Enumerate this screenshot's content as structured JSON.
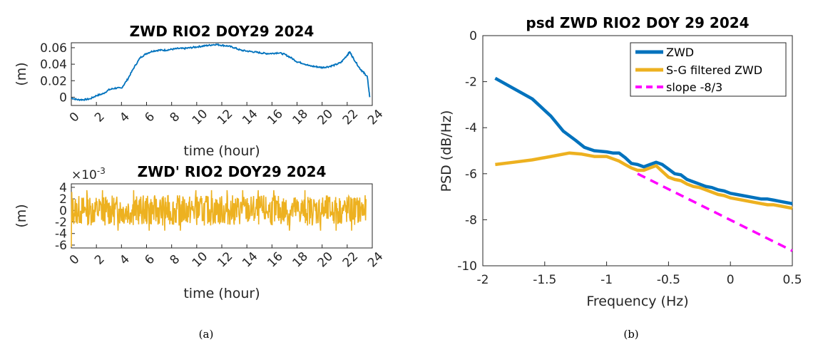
{
  "chart_data": [
    {
      "type": "line",
      "title": "ZWD RIO2 DOY29 2024",
      "xlabel": "time (hour)",
      "ylabel": "(m)",
      "xlim": [
        0,
        24
      ],
      "ylim": [
        -0.01,
        0.066
      ],
      "xticks": [
        "0",
        "2",
        "4",
        "6",
        "8",
        "10",
        "12",
        "14",
        "16",
        "18",
        "20",
        "22",
        "24"
      ],
      "yticks": [
        "0",
        "0.02",
        "0.04",
        "0.06"
      ],
      "grid": false,
      "series": [
        {
          "color": "#0072BD",
          "x": [
            0,
            0.5,
            1,
            1.5,
            2,
            2.5,
            3,
            3.5,
            4,
            4.5,
            5,
            5.5,
            6,
            6.5,
            7,
            7.5,
            8,
            8.5,
            9,
            9.5,
            10,
            10.5,
            11,
            11.5,
            12,
            12.5,
            13,
            13.5,
            14,
            14.5,
            15,
            15.5,
            16,
            16.5,
            17,
            17.5,
            18,
            18.5,
            19,
            19.5,
            20,
            20.5,
            21,
            21.5,
            22,
            22.2,
            22.5,
            23,
            23.3,
            23.6,
            23.8
          ],
          "y": [
            -0.001,
            -0.003,
            -0.003,
            -0.002,
            0.002,
            0.004,
            0.009,
            0.011,
            0.011,
            0.022,
            0.036,
            0.048,
            0.053,
            0.056,
            0.057,
            0.057,
            0.058,
            0.059,
            0.059,
            0.06,
            0.061,
            0.062,
            0.063,
            0.064,
            0.063,
            0.062,
            0.06,
            0.057,
            0.056,
            0.055,
            0.054,
            0.053,
            0.053,
            0.054,
            0.052,
            0.048,
            0.043,
            0.041,
            0.038,
            0.037,
            0.036,
            0.037,
            0.039,
            0.042,
            0.051,
            0.055,
            0.047,
            0.035,
            0.03,
            0.025,
            0.0
          ]
        }
      ]
    },
    {
      "type": "line",
      "title": "ZWD' RIO2 DOY29 2024",
      "xlabel": "time (hour)",
      "ylabel": "(m)",
      "yexponent": "×10",
      "yexponent_power": "-3",
      "xlim": [
        0,
        24
      ],
      "ylim": [
        -6.5,
        4.6
      ],
      "xticks": [
        "0",
        "2",
        "4",
        "6",
        "8",
        "10",
        "12",
        "14",
        "16",
        "18",
        "20",
        "22",
        "24"
      ],
      "yticks": [
        "4",
        "2",
        "0",
        "-2",
        "-4",
        "-6"
      ],
      "grid": false,
      "series": [
        {
          "color": "#EDB120",
          "x": [
            0,
            23.5
          ],
          "y_min": -3.5,
          "y_max": 3.5,
          "note_visible": false
        }
      ]
    },
    {
      "type": "line",
      "title": "psd ZWD RIO2 DOY 29 2024",
      "xlabel": "Frequency (Hz)",
      "ylabel": "PSD (dB/Hz)",
      "xlim": [
        -2,
        0.5
      ],
      "ylim": [
        -10,
        0
      ],
      "xticks": [
        "-2",
        "-1.5",
        "-1",
        "-0.5",
        "0",
        "0.5"
      ],
      "yticks": [
        "0",
        "-2",
        "-4",
        "-6",
        "-8",
        "-10"
      ],
      "grid": false,
      "legend_position": "top-right",
      "series": [
        {
          "name": "ZWD",
          "color": "#0072BD",
          "style": "solid",
          "x": [
            -1.9,
            -1.75,
            -1.6,
            -1.45,
            -1.35,
            -1.25,
            -1.18,
            -1.1,
            -1.0,
            -0.95,
            -0.9,
            -0.85,
            -0.8,
            -0.75,
            -0.7,
            -0.65,
            -0.6,
            -0.55,
            -0.5,
            -0.45,
            -0.4,
            -0.35,
            -0.3,
            -0.25,
            -0.2,
            -0.15,
            -0.1,
            -0.05,
            0.0,
            0.05,
            0.1,
            0.15,
            0.2,
            0.25,
            0.3,
            0.35,
            0.4,
            0.45,
            0.5
          ],
          "y": [
            -1.85,
            -2.3,
            -2.75,
            -3.5,
            -4.15,
            -4.55,
            -4.85,
            -5.0,
            -5.05,
            -5.1,
            -5.1,
            -5.3,
            -5.55,
            -5.6,
            -5.7,
            -5.6,
            -5.5,
            -5.6,
            -5.8,
            -6.0,
            -6.05,
            -6.25,
            -6.35,
            -6.45,
            -6.55,
            -6.6,
            -6.7,
            -6.75,
            -6.85,
            -6.9,
            -6.95,
            -7.0,
            -7.05,
            -7.1,
            -7.1,
            -7.15,
            -7.2,
            -7.25,
            -7.3
          ]
        },
        {
          "name": "S-G filtered ZWD",
          "color": "#EDB120",
          "style": "solid",
          "x": [
            -1.9,
            -1.75,
            -1.6,
            -1.45,
            -1.3,
            -1.2,
            -1.1,
            -1.0,
            -0.95,
            -0.9,
            -0.85,
            -0.8,
            -0.75,
            -0.7,
            -0.65,
            -0.6,
            -0.55,
            -0.5,
            -0.45,
            -0.4,
            -0.35,
            -0.3,
            -0.25,
            -0.2,
            -0.15,
            -0.1,
            -0.05,
            0.0,
            0.05,
            0.1,
            0.15,
            0.2,
            0.25,
            0.3,
            0.35,
            0.4,
            0.45,
            0.5
          ],
          "y": [
            -5.6,
            -5.5,
            -5.4,
            -5.25,
            -5.1,
            -5.15,
            -5.25,
            -5.25,
            -5.35,
            -5.45,
            -5.6,
            -5.75,
            -5.85,
            -5.85,
            -5.75,
            -5.65,
            -5.9,
            -6.15,
            -6.25,
            -6.3,
            -6.45,
            -6.55,
            -6.6,
            -6.7,
            -6.8,
            -6.9,
            -6.95,
            -7.05,
            -7.1,
            -7.15,
            -7.2,
            -7.25,
            -7.3,
            -7.35,
            -7.35,
            -7.4,
            -7.45,
            -7.5
          ]
        },
        {
          "name": "slope -8/3",
          "color": "#FF00FF",
          "style": "dashed",
          "x": [
            -0.75,
            0.5
          ],
          "y": [
            -6.0,
            -9.35
          ]
        }
      ]
    }
  ],
  "captions": {
    "a": "(a)",
    "b": "(b)"
  }
}
